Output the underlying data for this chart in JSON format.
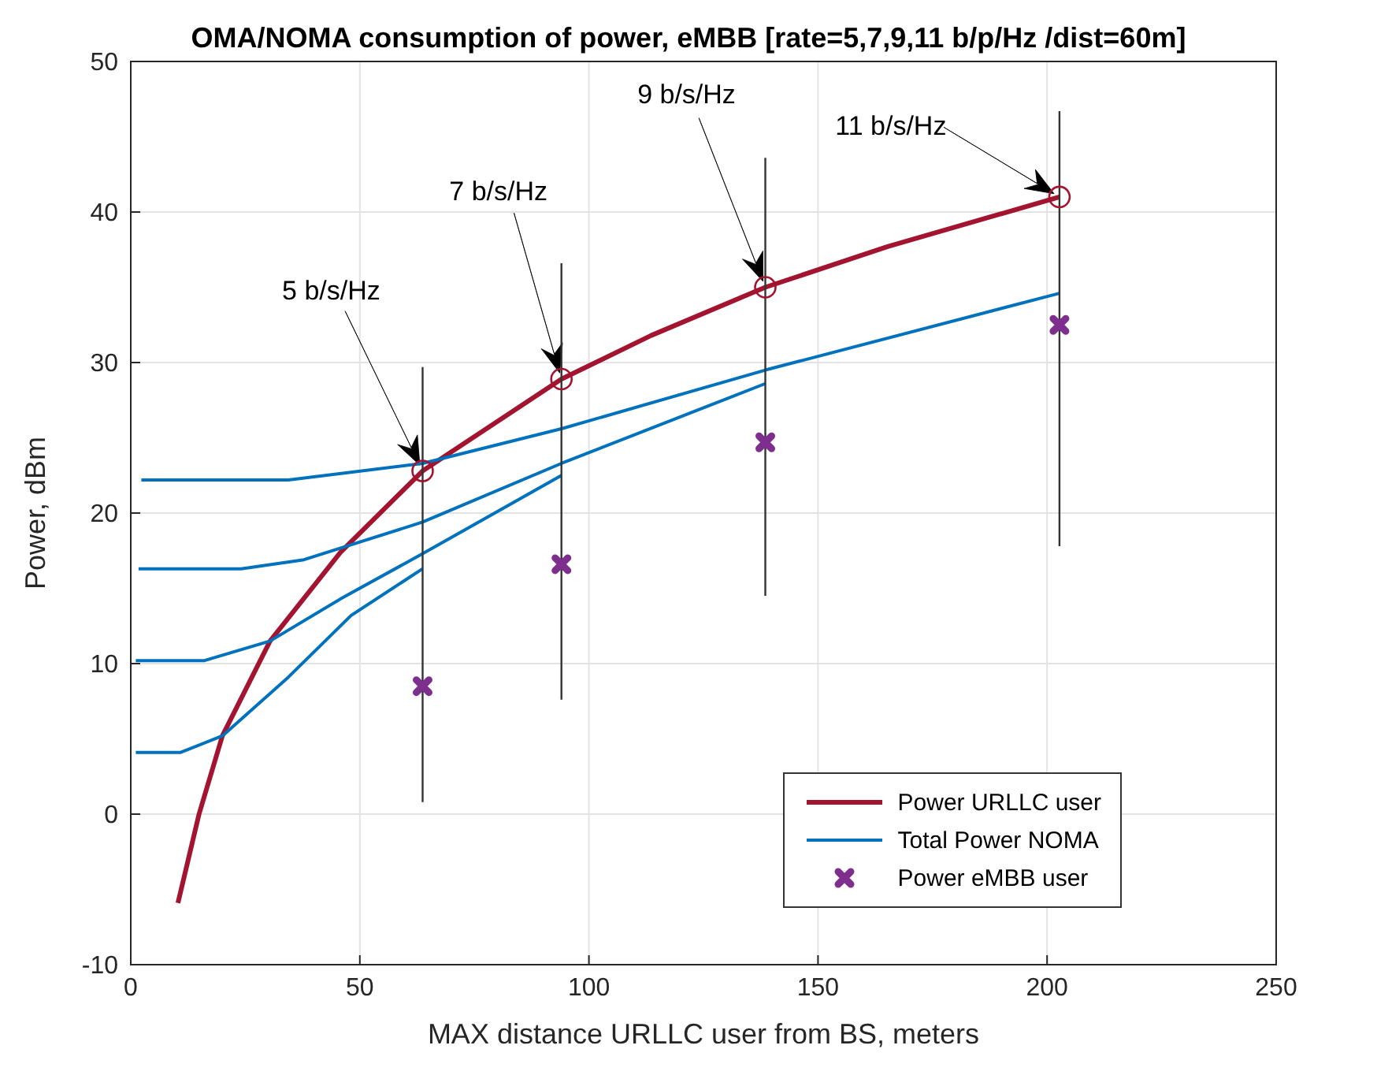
{
  "chart_data": {
    "type": "line",
    "title": "OMA/NOMA consumption of power, eMBB [rate=5,7,9,11 b/p/Hz /dist=60m]",
    "xlabel": "MAX distance URLLC user from BS, meters",
    "ylabel": "Power, dBm",
    "xlim": [
      0,
      250
    ],
    "xticks": [
      0,
      50,
      100,
      150,
      200,
      250
    ],
    "ylim": [
      -10,
      50
    ],
    "yticks": [
      -10,
      0,
      10,
      20,
      30,
      40,
      50
    ],
    "grid": true,
    "legend": "bottom right",
    "series": [
      {
        "name": "Power URLLC user",
        "color": "#a2142f",
        "x": [
          10.3,
          14.9,
          20.0,
          30.4,
          45.8,
          63.7,
          94.0,
          113.6,
          138.5,
          165.2,
          202.7
        ],
        "values": [
          -5.9,
          0.0,
          5.2,
          11.5,
          17.4,
          22.8,
          28.9,
          31.8,
          35.0,
          37.7,
          41.0
        ]
      },
      {
        "type": "scatter",
        "color": "#a2142f",
        "marker": "circle",
        "x": [
          63.7,
          94.0,
          138.5,
          202.7
        ],
        "values": [
          22.8,
          28.9,
          35.0,
          41.0
        ]
      },
      {
        "name": "Total Power NOMA",
        "color": "#0072bd",
        "x": [
          2.3,
          34.4,
          63.7,
          94.0,
          138.5,
          202.7
        ],
        "values": [
          22.2,
          22.2,
          23.3,
          25.6,
          29.5,
          34.6
        ]
      },
      {
        "color": "#0072bd",
        "x": [
          1.7,
          24.1,
          37.8,
          63.7,
          94.0,
          138.5
        ],
        "values": [
          16.3,
          16.3,
          16.9,
          19.4,
          23.3,
          28.6
        ]
      },
      {
        "color": "#0072bd",
        "x": [
          1.1,
          16.1,
          30.4,
          45.8,
          63.7,
          94.0
        ],
        "values": [
          10.2,
          10.2,
          11.5,
          14.3,
          17.3,
          22.5
        ]
      },
      {
        "color": "#0072bd",
        "x": [
          1.1,
          10.9,
          20.0,
          34.4,
          48.1,
          63.7
        ],
        "values": [
          4.1,
          4.1,
          5.2,
          9.1,
          13.2,
          16.3
        ]
      },
      {
        "name": "Power eMBB user",
        "type": "scatter",
        "color": "#7e2f8e",
        "marker": "cross",
        "x": [
          63.7,
          94.0,
          138.5,
          202.7
        ],
        "values": [
          8.5,
          16.6,
          24.7,
          32.5
        ],
        "errors": [
          [
            0.8,
            29.7
          ],
          [
            7.6,
            36.6
          ],
          [
            14.5,
            43.6
          ],
          [
            17.8,
            46.7
          ]
        ]
      }
    ],
    "annotations": [
      "5 b/s/Hz",
      "7 b/s/Hz",
      "9 b/s/Hz",
      "11 b/s/Hz"
    ]
  }
}
